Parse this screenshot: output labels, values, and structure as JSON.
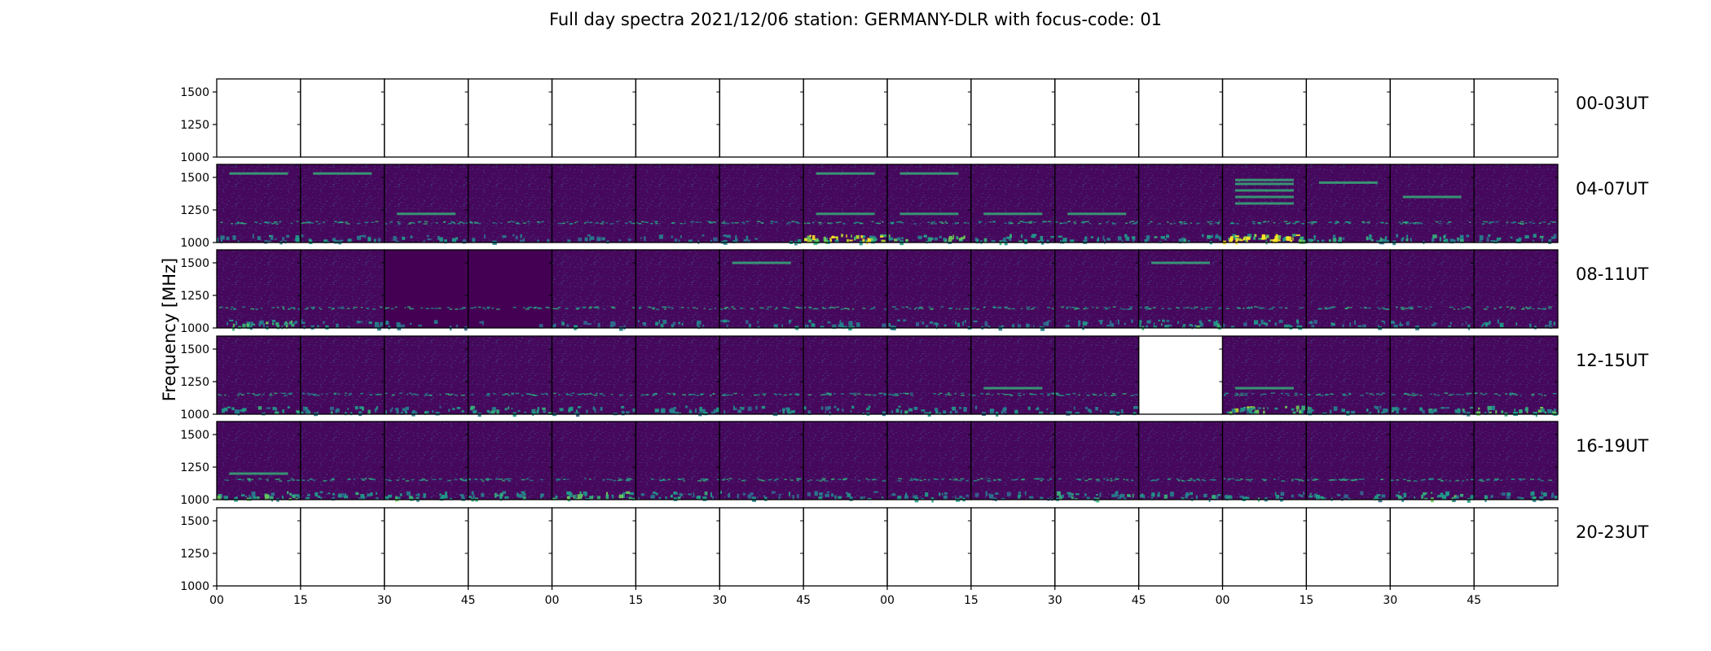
{
  "chart_data": {
    "type": "heatmap",
    "title": "Full day spectra 2021/12/06 station: GERMANY-DLR with focus-code: 01",
    "ylabel": "Frequency [MHz]",
    "xlabel": "",
    "ylim": [
      1000,
      1600
    ],
    "y_ticks": [
      "1000",
      "1250",
      "1500"
    ],
    "x_ticks": [
      "00",
      "15",
      "30",
      "45",
      "00",
      "15",
      "30",
      "45",
      "00",
      "15",
      "30",
      "45",
      "00",
      "15",
      "30",
      "45"
    ],
    "colormap": [
      "#440154",
      "#482878",
      "#3e4989",
      "#31688e",
      "#26828e",
      "#1f9e89",
      "#35b779",
      "#6ece58",
      "#b5de2b",
      "#fde725"
    ],
    "panel_background": "#46085c",
    "rows": [
      {
        "label": "00-03UT",
        "has_data": [
          false,
          false,
          false,
          false,
          false,
          false,
          false,
          false,
          false,
          false,
          false,
          false,
          false,
          false,
          false,
          false
        ],
        "line_bands": [
          [],
          [],
          [],
          [],
          [],
          [],
          [],
          [],
          [],
          [],
          [],
          [],
          [],
          [],
          [],
          []
        ],
        "burst": [
          0,
          0,
          0,
          0,
          0,
          0,
          0,
          0,
          0,
          0,
          0,
          0,
          0,
          0,
          0,
          0
        ]
      },
      {
        "label": "04-07UT",
        "has_data": [
          true,
          true,
          true,
          true,
          true,
          true,
          true,
          true,
          true,
          true,
          true,
          true,
          true,
          true,
          true,
          true
        ],
        "line_bands": [
          [
            1530
          ],
          [
            1530
          ],
          [
            1220
          ],
          [],
          [],
          [],
          [],
          [
            1220,
            1530
          ],
          [
            1220,
            1530
          ],
          [
            1220
          ],
          [
            1220
          ],
          [],
          [
            1480,
            1450,
            1400,
            1350,
            1300
          ],
          [
            1460
          ],
          [
            1350
          ],
          []
        ],
        "burst": [
          0.35,
          0.3,
          0.25,
          0.2,
          0.2,
          0.2,
          0.25,
          0.9,
          0.5,
          0.4,
          0.35,
          0.35,
          1.0,
          0.45,
          0.4,
          0.35
        ]
      },
      {
        "label": "08-11UT",
        "has_data": [
          true,
          true,
          true,
          true,
          true,
          true,
          true,
          true,
          true,
          true,
          true,
          true,
          true,
          true,
          true,
          true
        ],
        "line_bands": [
          [],
          [],
          [],
          [],
          [],
          [],
          [
            1500
          ],
          [],
          [],
          [],
          [],
          [
            1500
          ],
          [],
          [],
          [],
          []
        ],
        "burst": [
          0.55,
          0.3,
          0.2,
          0.05,
          0.25,
          0.25,
          0.25,
          0.3,
          0.3,
          0.25,
          0.25,
          0.5,
          0.3,
          0.25,
          0.25,
          0.3
        ]
      },
      {
        "label": "12-15UT",
        "has_data": [
          true,
          true,
          true,
          true,
          true,
          true,
          true,
          true,
          true,
          true,
          true,
          false,
          true,
          true,
          true,
          true
        ],
        "line_bands": [
          [],
          [],
          [],
          [],
          [],
          [],
          [],
          [],
          [],
          [
            1200
          ],
          [],
          [],
          [
            1200
          ],
          [],
          [],
          []
        ],
        "burst": [
          0.35,
          0.4,
          0.35,
          0.45,
          0.3,
          0.35,
          0.3,
          0.3,
          0.35,
          0.3,
          0.3,
          0,
          0.6,
          0.35,
          0.4,
          0.55
        ]
      },
      {
        "label": "16-19UT",
        "has_data": [
          true,
          true,
          true,
          true,
          true,
          true,
          true,
          true,
          true,
          true,
          true,
          true,
          true,
          true,
          true,
          true
        ],
        "line_bands": [
          [
            1200
          ],
          [],
          [],
          [],
          [],
          [],
          [],
          [],
          [],
          [],
          [],
          [],
          [],
          [],
          [],
          []
        ],
        "burst": [
          0.5,
          0.35,
          0.45,
          0.4,
          0.55,
          0.4,
          0.3,
          0.3,
          0.35,
          0.3,
          0.45,
          0.35,
          0.35,
          0.35,
          0.5,
          0.35
        ]
      },
      {
        "label": "20-23UT",
        "has_data": [
          false,
          false,
          false,
          false,
          false,
          false,
          false,
          false,
          false,
          false,
          false,
          false,
          false,
          false,
          false,
          false
        ],
        "line_bands": [
          [],
          [],
          [],
          [],
          [],
          [],
          [],
          [],
          [],
          [],
          [],
          [],
          [],
          [],
          [],
          []
        ],
        "burst": [
          0,
          0,
          0,
          0,
          0,
          0,
          0,
          0,
          0,
          0,
          0,
          0,
          0,
          0,
          0,
          0
        ]
      }
    ]
  }
}
